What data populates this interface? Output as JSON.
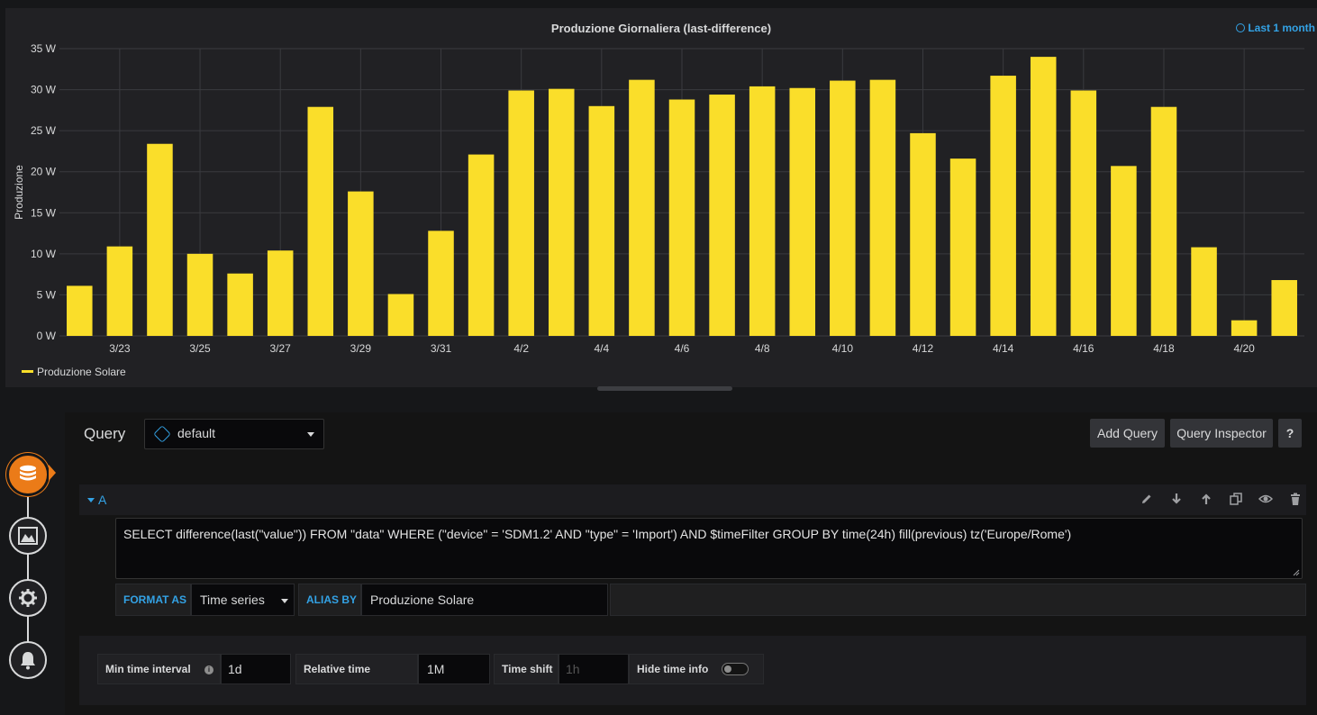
{
  "panel": {
    "title": "Produzione Giornaliera (last-difference)",
    "time_info": "Last 1 month"
  },
  "chart_data": {
    "type": "bar",
    "ylabel": "Produzione",
    "yticks": [
      "0 W",
      "5 W",
      "10 W",
      "15 W",
      "20 W",
      "25 W",
      "30 W",
      "35 W"
    ],
    "ylim": [
      0,
      35
    ],
    "xticks": [
      "3/23",
      "3/25",
      "3/27",
      "3/29",
      "3/31",
      "4/2",
      "4/4",
      "4/6",
      "4/8",
      "4/10",
      "4/12",
      "4/14",
      "4/16",
      "4/18",
      "4/20"
    ],
    "categories": [
      "3/22",
      "3/23",
      "3/24",
      "3/25",
      "3/26",
      "3/27",
      "3/28",
      "3/29",
      "3/30",
      "3/31",
      "4/1",
      "4/2",
      "4/3",
      "4/4",
      "4/5",
      "4/6",
      "4/7",
      "4/8",
      "4/9",
      "4/10",
      "4/11",
      "4/12",
      "4/13",
      "4/14",
      "4/15",
      "4/16",
      "4/17",
      "4/18",
      "4/19",
      "4/20",
      "4/21"
    ],
    "series": [
      {
        "name": "Produzione Solare",
        "color": "#fade2a",
        "values": [
          6.1,
          10.9,
          23.4,
          10.0,
          7.6,
          10.4,
          27.9,
          17.6,
          5.1,
          12.8,
          22.1,
          29.9,
          30.1,
          28.0,
          31.2,
          28.8,
          29.4,
          30.4,
          30.2,
          31.1,
          31.2,
          24.7,
          21.6,
          31.7,
          34.0,
          29.9,
          20.7,
          27.9,
          10.8,
          1.9,
          6.8
        ]
      }
    ],
    "grid": true,
    "legend": "bottom-left"
  },
  "legend": {
    "label": "Produzione Solare",
    "color": "#fade2a"
  },
  "rail": {
    "items": [
      {
        "icon": "database-icon",
        "active": true
      },
      {
        "icon": "chart-area-icon",
        "active": false
      },
      {
        "icon": "cog-icon",
        "active": false
      },
      {
        "icon": "bell-icon",
        "active": false
      }
    ],
    "accent": "#eb7b18"
  },
  "editor": {
    "query_label": "Query",
    "datasource": "default",
    "add_query": "Add Query",
    "query_inspector": "Query Inspector",
    "help": "?",
    "query_ref": "A",
    "query_text": "SELECT difference(last(\"value\")) FROM \"data\" WHERE (\"device\" = 'SDM1.2' AND \"type\" = 'Import') AND $timeFilter GROUP BY time(24h) fill(previous) tz('Europe/Rome')",
    "format_as_label": "FORMAT AS",
    "format_as_value": "Time series",
    "alias_by_label": "ALIAS BY",
    "alias_by_value": "Produzione Solare"
  },
  "options": {
    "min_interval_label": "Min time interval",
    "min_interval_value": "1d",
    "relative_time_label": "Relative time",
    "relative_time_value": "1M",
    "time_shift_label": "Time shift",
    "time_shift_placeholder": "1h",
    "hide_time_info_label": "Hide time info"
  }
}
